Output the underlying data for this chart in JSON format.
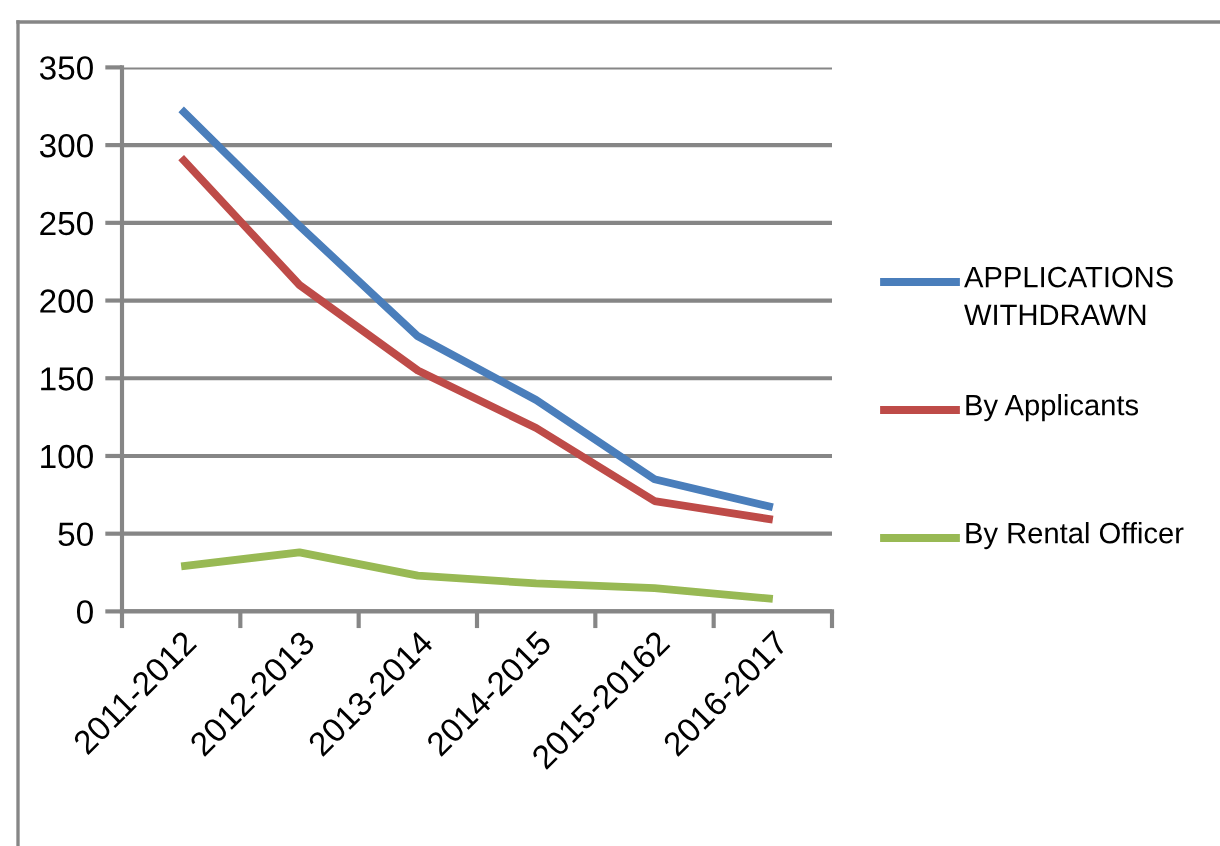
{
  "chart_data": {
    "type": "line",
    "categories": [
      "2011-2012",
      "2012-2013",
      "2013-2014",
      "2014-2015",
      "2015-20162",
      "2016-2017"
    ],
    "series": [
      {
        "name": "APPLICATIONS WITHDRAWN",
        "color": "#4a7ebb",
        "values": [
          323,
          248,
          177,
          136,
          85,
          67
        ]
      },
      {
        "name": "By Applicants",
        "color": "#be4b48",
        "values": [
          292,
          210,
          155,
          118,
          71,
          59
        ]
      },
      {
        "name": "By Rental Officer",
        "color": "#98b954",
        "values": [
          29,
          38,
          23,
          18,
          15,
          8
        ]
      }
    ],
    "ylim": [
      0,
      350
    ],
    "yticks": [
      0,
      50,
      100,
      150,
      200,
      250,
      300,
      350
    ],
    "grid": "y",
    "legend": "right",
    "marker": "none",
    "line_style": "solid"
  }
}
